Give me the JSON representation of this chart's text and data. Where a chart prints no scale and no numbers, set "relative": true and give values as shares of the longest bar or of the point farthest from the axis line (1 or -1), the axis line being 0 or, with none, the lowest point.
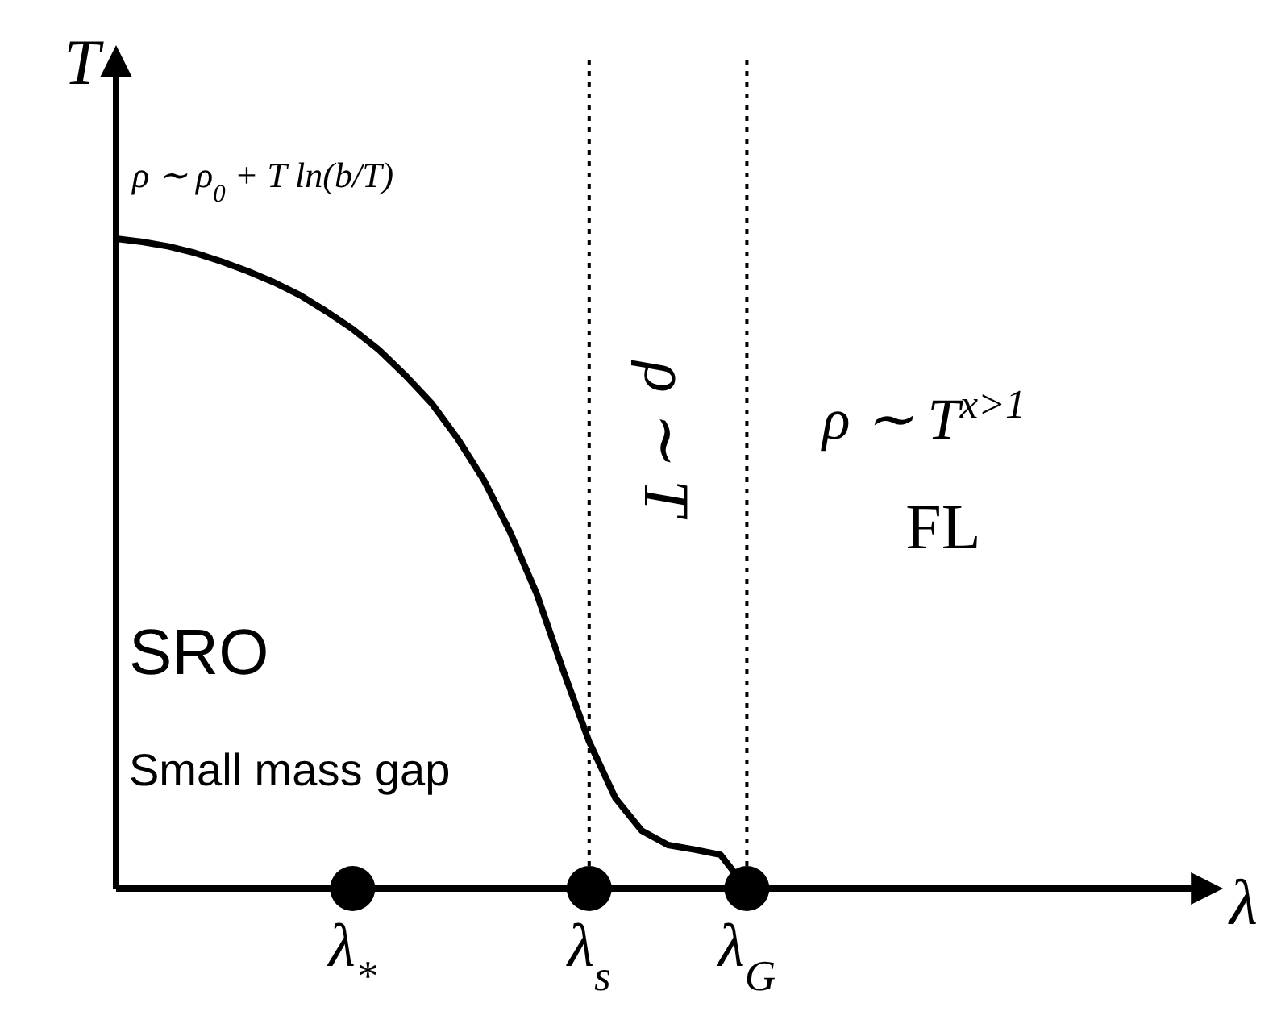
{
  "chart_data": {
    "type": "line",
    "relative": true,
    "xlabel": "λ",
    "ylabel": "T",
    "categories": [
      null,
      null,
      null,
      null,
      null,
      null,
      null,
      null,
      null,
      "λ$_{*}$",
      null,
      null,
      null,
      null,
      null,
      null,
      null,
      null,
      "λ$_{s}$",
      null,
      null,
      null,
      null,
      null,
      "λ$_{G}$",
      null,
      null,
      null,
      null,
      null,
      null,
      null,
      null,
      null,
      null,
      null,
      null,
      null,
      null,
      null,
      null,
      null,
      null
    ],
    "series": [
      {
        "color": "#000000",
        "values": [
          1.0,
          0.995,
          0.988,
          0.978,
          0.965,
          0.95,
          0.933,
          0.913,
          0.888,
          0.861,
          0.829,
          0.79,
          0.747,
          0.692,
          0.628,
          0.548,
          0.454,
          0.337,
          0.226,
          0.139,
          0.089,
          0.067,
          0.06,
          0.052,
          0,
          null,
          null,
          null,
          null,
          null,
          null,
          null,
          null,
          null,
          null,
          null,
          null,
          null,
          null,
          null,
          null,
          null,
          null
        ]
      },
      {
        "type": "scatter",
        "color": "#000000",
        "marker": "circle",
        "values": [
          null,
          null,
          null,
          null,
          null,
          null,
          null,
          null,
          null,
          0,
          null,
          null,
          null,
          null,
          null,
          null,
          null,
          null,
          0,
          null,
          null,
          null,
          null,
          null,
          0,
          null,
          null,
          null,
          null,
          null,
          null,
          null,
          null,
          null,
          null,
          null,
          null,
          null,
          null,
          null,
          null,
          null,
          null
        ]
      }
    ],
    "ref_lines": [
      {
        "axis": "x",
        "value": "λ$_{s}$",
        "line_style": "dotted",
        "color": "#000000"
      },
      {
        "axis": "x",
        "value": "λ$_{G}$",
        "line_style": "dotted",
        "color": "#000000"
      }
    ],
    "annotations": [
      "ρ ∼ ρ$_{0}$ + T ln(b/T)",
      "ρ ∼ T",
      "ρ ∼ T$^{x>1}$",
      "FL",
      "SRO",
      "Small mass gap"
    ]
  }
}
